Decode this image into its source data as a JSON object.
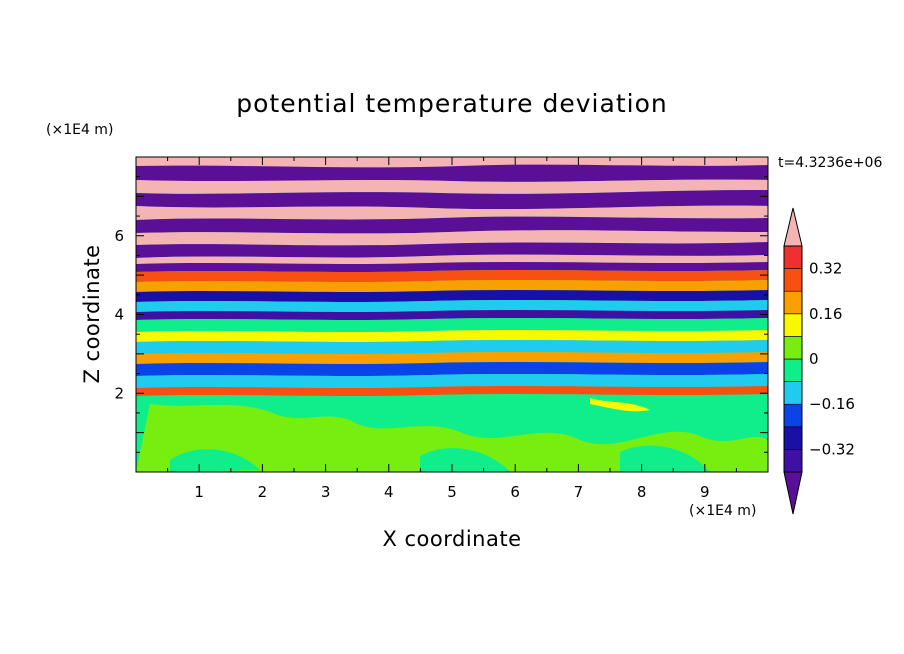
{
  "chart_data": {
    "type": "heatmap",
    "title": "potential temperature deviation",
    "xlabel": "X coordinate",
    "ylabel": "Z coordinate",
    "x_unit": "(×1E4 m)",
    "y_unit": "(×1E4 m)",
    "time_label": "t=4.3236e+06",
    "xlim": [
      0,
      10
    ],
    "ylim": [
      0,
      8
    ],
    "x_ticks": [
      "1",
      "2",
      "3",
      "4",
      "5",
      "6",
      "7",
      "8",
      "9"
    ],
    "y_ticks": [
      "2",
      "4",
      "6"
    ],
    "colorbar": {
      "levels": [
        -0.4,
        -0.32,
        -0.24,
        -0.16,
        -0.08,
        0,
        0.08,
        0.16,
        0.24,
        0.32,
        0.4
      ],
      "colors": [
        "#5b0f96",
        "#3f10a4",
        "#1a10a8",
        "#0a44e8",
        "#20ccee",
        "#10ee8c",
        "#78ee10",
        "#f8f800",
        "#f8a000",
        "#f85010",
        "#f03030",
        "#f4b4b4"
      ],
      "tick_labels": [
        "-0.32",
        "-0.16",
        "0",
        "0.16",
        "0.32"
      ],
      "extend": "both"
    }
  }
}
